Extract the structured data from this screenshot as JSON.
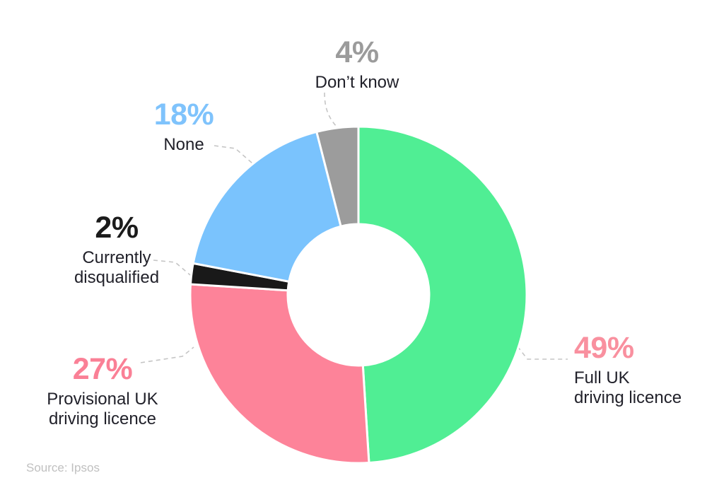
{
  "chart_data": {
    "type": "pie",
    "variant": "donut",
    "title": "",
    "source": "Source: Ipsos",
    "legend_position": "callouts-around-chart",
    "start_angle": "12-o'clock, clockwise",
    "slices": [
      {
        "label": "Full UK driving licence",
        "label_lines": [
          "Full UK",
          "driving licence"
        ],
        "value": 49,
        "pct_label": "49%",
        "slice_color": "#50ee94",
        "pct_color": "#f9909f"
      },
      {
        "label": "Provisional UK driving licence",
        "label_lines": [
          "Provisional UK",
          "driving licence"
        ],
        "value": 27,
        "pct_label": "27%",
        "slice_color": "#fd8399",
        "pct_color": "#fa8096"
      },
      {
        "label": "Currently disqualified",
        "label_lines": [
          "Currently",
          "disqualified"
        ],
        "value": 2,
        "pct_label": "2%",
        "slice_color": "#191919",
        "pct_color": "#1b1b1b"
      },
      {
        "label": "None",
        "label_lines": [
          "None"
        ],
        "value": 18,
        "pct_label": "18%",
        "slice_color": "#7ac3fd",
        "pct_color": "#7fc3fc"
      },
      {
        "label": "Don’t know",
        "label_lines": [
          "Don’t know"
        ],
        "value": 4,
        "pct_label": "4%",
        "slice_color": "#9c9c9c",
        "pct_color": "#9b9b9b"
      }
    ],
    "label_text_color": "#21212a",
    "separator_color": "#ffffff"
  }
}
